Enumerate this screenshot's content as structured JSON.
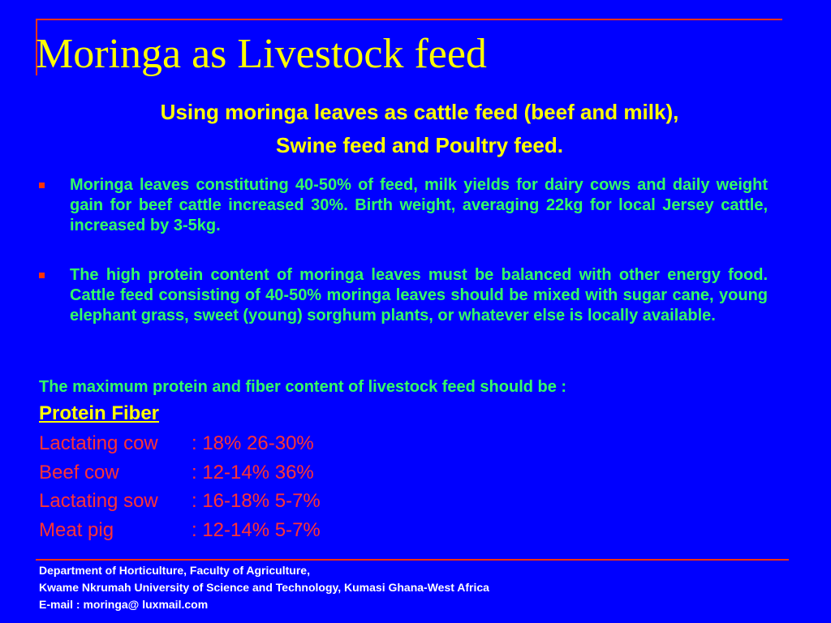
{
  "slide": {
    "title": "Moringa as Livestock feed",
    "subtitle_line_1": "Using moringa leaves as cattle feed (beef and milk),",
    "subtitle_line_2": "Swine feed and Poultry feed."
  },
  "bullets": [
    {
      "text": "Moringa leaves constituting 40-50% of feed, milk yields for dairy cows and daily weight gain for beef cattle increased 30%. Birth weight, averaging 22kg for local Jersey cattle, increased by 3-5kg."
    },
    {
      "text": "The high protein content of moringa leaves must be balanced with other energy food. Cattle feed consisting of 40-50% moringa leaves should be mixed with sugar cane, young elephant grass, sweet (young) sorghum plants, or whatever else is locally available."
    }
  ],
  "max_content": {
    "note": "The maximum protein and fiber content of livestock feed should be :",
    "header": "Protein Fiber",
    "rows": [
      {
        "name": "Lactating cow",
        "values": ": 18% 26-30%"
      },
      {
        "name": "Beef cow",
        "values": ": 12-14% 36%"
      },
      {
        "name": "Lactating sow",
        "values": ": 16-18% 5-7%"
      },
      {
        "name": "Meat pig",
        "values": ": 12-14% 5-7%"
      }
    ]
  },
  "footer": {
    "line_1": "Department of Horticulture, Faculty of Agriculture,",
    "line_2": "Kwame Nkrumah  University of  Science and Technology, Kumasi Ghana-West Africa",
    "line_3": "E-mail :  moringa@ luxmail.com"
  },
  "colors": {
    "background": "#0000ff",
    "title": "#ffff00",
    "body_text": "#33ff66",
    "table_rows": "#ff3333",
    "footer": "#ffffff",
    "accent_rule": "#ff3300"
  }
}
